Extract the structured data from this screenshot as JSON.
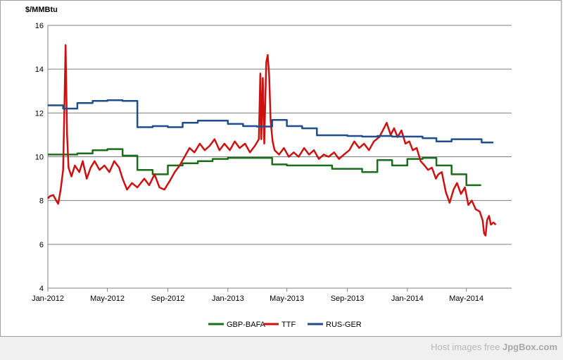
{
  "chart_data": {
    "type": "line",
    "ylabel": "$/MMBtu",
    "ylim": [
      4,
      16
    ],
    "yticks": [
      "4",
      "6",
      "8",
      "10",
      "12",
      "14",
      "16"
    ],
    "xlim": [
      "2012-01-01",
      "2014-08-01"
    ],
    "xticks": [
      {
        "date": "2012-01-01",
        "label": "Jan-2012"
      },
      {
        "date": "2012-05-01",
        "label": "May-2012"
      },
      {
        "date": "2012-09-01",
        "label": "Sep-2012"
      },
      {
        "date": "2013-01-01",
        "label": "Jan-2013"
      },
      {
        "date": "2013-05-01",
        "label": "May-2013"
      },
      {
        "date": "2013-09-01",
        "label": "Sep-2013"
      },
      {
        "date": "2014-01-01",
        "label": "Jan-2014"
      },
      {
        "date": "2014-05-01",
        "label": "May-2014"
      }
    ],
    "grid": "horizontal",
    "legend": "bottom",
    "series": [
      {
        "name": "GBP-BAFA",
        "color": "#1a6e1a",
        "step": true,
        "points": [
          [
            "2012-01-01",
            10.1
          ],
          [
            "2012-03-01",
            10.15
          ],
          [
            "2012-04-01",
            10.3
          ],
          [
            "2012-05-01",
            10.35
          ],
          [
            "2012-06-01",
            10.05
          ],
          [
            "2012-07-01",
            9.4
          ],
          [
            "2012-08-01",
            9.2
          ],
          [
            "2012-09-01",
            9.6
          ],
          [
            "2012-10-01",
            9.7
          ],
          [
            "2012-11-01",
            9.8
          ],
          [
            "2012-12-01",
            9.9
          ],
          [
            "2013-01-01",
            9.95
          ],
          [
            "2013-02-01",
            9.95
          ],
          [
            "2013-03-01",
            9.95
          ],
          [
            "2013-04-01",
            9.65
          ],
          [
            "2013-05-01",
            9.6
          ],
          [
            "2013-06-01",
            9.6
          ],
          [
            "2013-07-01",
            9.6
          ],
          [
            "2013-08-01",
            9.45
          ],
          [
            "2013-09-01",
            9.45
          ],
          [
            "2013-10-01",
            9.3
          ],
          [
            "2013-11-01",
            9.85
          ],
          [
            "2013-12-01",
            9.6
          ],
          [
            "2014-01-01",
            9.9
          ],
          [
            "2014-02-01",
            9.95
          ],
          [
            "2014-03-01",
            9.6
          ],
          [
            "2014-04-01",
            9.2
          ],
          [
            "2014-05-01",
            8.7
          ],
          [
            "2014-05-31",
            8.7
          ]
        ]
      },
      {
        "name": "TTF",
        "color": "#cc1111",
        "step": false,
        "points": [
          [
            "2012-01-01",
            8.1
          ],
          [
            "2012-01-05",
            8.2
          ],
          [
            "2012-01-12",
            8.25
          ],
          [
            "2012-01-18",
            8.0
          ],
          [
            "2012-01-22",
            7.85
          ],
          [
            "2012-01-27",
            8.5
          ],
          [
            "2012-02-01",
            9.4
          ],
          [
            "2012-02-03",
            11.6
          ],
          [
            "2012-02-06",
            15.1
          ],
          [
            "2012-02-09",
            11.0
          ],
          [
            "2012-02-12",
            9.5
          ],
          [
            "2012-02-18",
            9.1
          ],
          [
            "2012-02-25",
            9.6
          ],
          [
            "2012-03-05",
            9.3
          ],
          [
            "2012-03-12",
            9.8
          ],
          [
            "2012-03-20",
            9.0
          ],
          [
            "2012-03-28",
            9.5
          ],
          [
            "2012-04-05",
            9.8
          ],
          [
            "2012-04-15",
            9.4
          ],
          [
            "2012-04-25",
            9.6
          ],
          [
            "2012-05-05",
            9.3
          ],
          [
            "2012-05-15",
            9.8
          ],
          [
            "2012-05-25",
            9.5
          ],
          [
            "2012-06-01",
            9.0
          ],
          [
            "2012-06-10",
            8.5
          ],
          [
            "2012-06-20",
            8.8
          ],
          [
            "2012-07-01",
            8.6
          ],
          [
            "2012-07-15",
            9.0
          ],
          [
            "2012-07-25",
            8.7
          ],
          [
            "2012-08-05",
            9.2
          ],
          [
            "2012-08-15",
            8.6
          ],
          [
            "2012-08-25",
            8.5
          ],
          [
            "2012-09-05",
            8.9
          ],
          [
            "2012-09-15",
            9.3
          ],
          [
            "2012-09-25",
            9.6
          ],
          [
            "2012-10-05",
            10.0
          ],
          [
            "2012-10-15",
            10.4
          ],
          [
            "2012-10-25",
            10.2
          ],
          [
            "2012-11-05",
            10.6
          ],
          [
            "2012-11-15",
            10.3
          ],
          [
            "2012-11-25",
            10.5
          ],
          [
            "2012-12-05",
            10.8
          ],
          [
            "2012-12-15",
            10.3
          ],
          [
            "2012-12-25",
            10.6
          ],
          [
            "2013-01-05",
            10.3
          ],
          [
            "2013-01-15",
            10.7
          ],
          [
            "2013-01-25",
            10.4
          ],
          [
            "2013-02-05",
            10.6
          ],
          [
            "2013-02-15",
            10.2
          ],
          [
            "2013-02-25",
            10.5
          ],
          [
            "2013-03-05",
            10.8
          ],
          [
            "2013-03-08",
            13.8
          ],
          [
            "2013-03-10",
            10.8
          ],
          [
            "2013-03-13",
            13.6
          ],
          [
            "2013-03-16",
            10.6
          ],
          [
            "2013-03-20",
            14.3
          ],
          [
            "2013-03-23",
            14.65
          ],
          [
            "2013-03-26",
            13.7
          ],
          [
            "2013-03-29",
            11.6
          ],
          [
            "2013-04-02",
            10.7
          ],
          [
            "2013-04-06",
            10.3
          ],
          [
            "2013-04-15",
            10.1
          ],
          [
            "2013-04-25",
            10.4
          ],
          [
            "2013-05-05",
            10.0
          ],
          [
            "2013-05-15",
            10.2
          ],
          [
            "2013-05-25",
            10.0
          ],
          [
            "2013-06-05",
            10.4
          ],
          [
            "2013-06-15",
            10.1
          ],
          [
            "2013-06-25",
            10.3
          ],
          [
            "2013-07-05",
            9.9
          ],
          [
            "2013-07-15",
            10.1
          ],
          [
            "2013-07-25",
            10.0
          ],
          [
            "2013-08-05",
            10.2
          ],
          [
            "2013-08-15",
            9.9
          ],
          [
            "2013-08-25",
            10.1
          ],
          [
            "2013-09-05",
            10.3
          ],
          [
            "2013-09-15",
            10.7
          ],
          [
            "2013-09-25",
            10.4
          ],
          [
            "2013-10-05",
            10.6
          ],
          [
            "2013-10-15",
            10.3
          ],
          [
            "2013-10-25",
            10.7
          ],
          [
            "2013-11-05",
            10.9
          ],
          [
            "2013-11-12",
            11.2
          ],
          [
            "2013-11-20",
            11.55
          ],
          [
            "2013-11-28",
            11.0
          ],
          [
            "2013-12-05",
            11.3
          ],
          [
            "2013-12-12",
            10.9
          ],
          [
            "2013-12-20",
            11.2
          ],
          [
            "2013-12-28",
            10.6
          ],
          [
            "2014-01-05",
            10.7
          ],
          [
            "2014-01-12",
            10.3
          ],
          [
            "2014-01-20",
            10.4
          ],
          [
            "2014-01-28",
            9.8
          ],
          [
            "2014-02-05",
            9.6
          ],
          [
            "2014-02-12",
            9.4
          ],
          [
            "2014-02-20",
            9.5
          ],
          [
            "2014-02-28",
            9.0
          ],
          [
            "2014-03-05",
            9.2
          ],
          [
            "2014-03-12",
            9.3
          ],
          [
            "2014-03-20",
            8.4
          ],
          [
            "2014-03-28",
            7.9
          ],
          [
            "2014-04-05",
            8.5
          ],
          [
            "2014-04-12",
            8.8
          ],
          [
            "2014-04-20",
            8.3
          ],
          [
            "2014-04-28",
            8.6
          ],
          [
            "2014-05-05",
            7.8
          ],
          [
            "2014-05-12",
            8.0
          ],
          [
            "2014-05-20",
            7.6
          ],
          [
            "2014-05-28",
            7.5
          ],
          [
            "2014-06-03",
            7.1
          ],
          [
            "2014-06-06",
            6.5
          ],
          [
            "2014-06-09",
            6.4
          ],
          [
            "2014-06-12",
            7.1
          ],
          [
            "2014-06-16",
            7.3
          ],
          [
            "2014-06-20",
            6.9
          ],
          [
            "2014-06-25",
            7.0
          ],
          [
            "2014-06-30",
            6.9
          ]
        ]
      },
      {
        "name": "RUS-GER",
        "color": "#1f4e8c",
        "step": true,
        "points": [
          [
            "2012-01-01",
            12.35
          ],
          [
            "2012-02-01",
            12.2
          ],
          [
            "2012-03-01",
            12.45
          ],
          [
            "2012-04-01",
            12.55
          ],
          [
            "2012-05-01",
            12.58
          ],
          [
            "2012-06-01",
            12.55
          ],
          [
            "2012-07-01",
            11.35
          ],
          [
            "2012-08-01",
            11.4
          ],
          [
            "2012-09-01",
            11.35
          ],
          [
            "2012-10-01",
            11.55
          ],
          [
            "2012-11-01",
            11.65
          ],
          [
            "2012-12-01",
            11.65
          ],
          [
            "2013-01-01",
            11.5
          ],
          [
            "2013-02-01",
            11.4
          ],
          [
            "2013-03-01",
            11.38
          ],
          [
            "2013-04-01",
            11.68
          ],
          [
            "2013-05-01",
            11.4
          ],
          [
            "2013-06-01",
            11.3
          ],
          [
            "2013-07-01",
            10.98
          ],
          [
            "2013-08-01",
            10.98
          ],
          [
            "2013-09-01",
            10.95
          ],
          [
            "2013-10-01",
            10.92
          ],
          [
            "2013-11-01",
            10.95
          ],
          [
            "2013-12-01",
            10.92
          ],
          [
            "2014-01-01",
            10.92
          ],
          [
            "2014-02-01",
            10.85
          ],
          [
            "2014-03-01",
            10.7
          ],
          [
            "2014-04-01",
            10.8
          ],
          [
            "2014-05-01",
            10.8
          ],
          [
            "2014-06-01",
            10.65
          ],
          [
            "2014-06-25",
            10.65
          ]
        ]
      }
    ]
  },
  "watermark": {
    "prefix": "Host images free",
    "brand": "JpgBox.com"
  }
}
